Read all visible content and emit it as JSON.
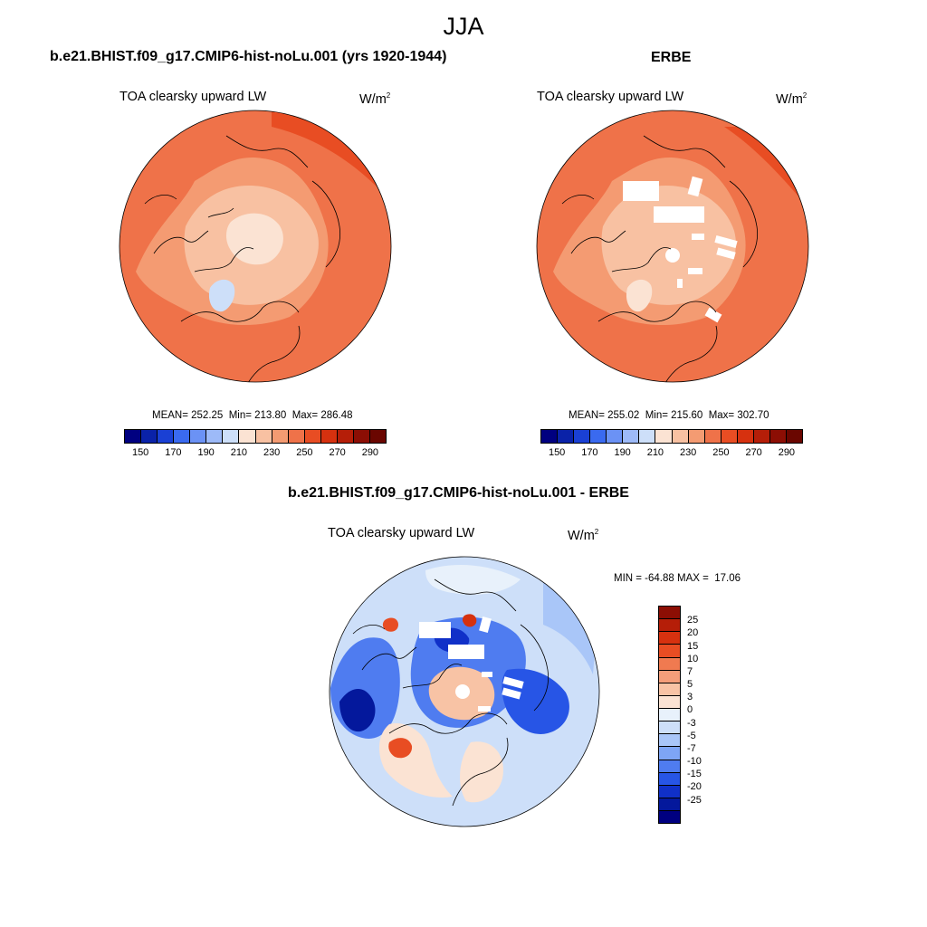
{
  "page_title": "JJA",
  "panels": [
    {
      "title": "b.e21.BHIST.f09_g17.CMIP6-hist-noLu.001 (yrs 1920-1944)",
      "variable": "TOA clearsky upward LW",
      "units": "W/m",
      "units_exp": "2",
      "stats": "MEAN= 252.25  Min= 213.80  Max= 286.48",
      "mean": 252.25,
      "min": 213.8,
      "max": 286.48
    },
    {
      "title": "ERBE",
      "variable": "TOA clearsky upward LW",
      "units": "W/m",
      "units_exp": "2",
      "stats": "MEAN= 255.02  Min= 215.60  Max= 302.70",
      "mean": 255.02,
      "min": 215.6,
      "max": 302.7
    },
    {
      "title": "b.e21.BHIST.f09_g17.CMIP6-hist-noLu.001 - ERBE",
      "variable": "TOA clearsky upward LW",
      "units": "W/m",
      "units_exp": "2",
      "stats": "MIN = -64.88 MAX =  17.06",
      "min": -64.88,
      "max": 17.06
    }
  ],
  "colorbar_abs": {
    "colors": [
      "#000080",
      "#0a22a8",
      "#1a40d4",
      "#3a6af0",
      "#6b92f5",
      "#9dbaf8",
      "#cddff9",
      "#fbe3d3",
      "#f8c1a2",
      "#f49b72",
      "#ef7249",
      "#e84d23",
      "#d6310f",
      "#b51e08",
      "#8c0e04",
      "#6a0600"
    ],
    "labels": [
      "150",
      "170",
      "190",
      "210",
      "230",
      "250",
      "270",
      "290"
    ],
    "label_slots": [
      1,
      3,
      5,
      7,
      9,
      11,
      13,
      15
    ]
  },
  "colorbar_diff": {
    "colors": [
      "#8c0e04",
      "#b51e08",
      "#d6310f",
      "#e84d23",
      "#f07a50",
      "#f49e7a",
      "#f8c3a5",
      "#fbe3d3",
      "#e8f1fb",
      "#cddff9",
      "#a9c6f8",
      "#7ea5f5",
      "#4f7cf0",
      "#2755e6",
      "#1030c8",
      "#04189c",
      "#000080"
    ],
    "labels": [
      "25",
      "20",
      "15",
      "10",
      "7",
      "5",
      "3",
      "0",
      "-3",
      "-5",
      "-7",
      "-10",
      "-15",
      "-20",
      "-25"
    ]
  },
  "map_colors": {
    "ocean_abs": "#ef7249",
    "land_abs": "#e84d23",
    "mid_abs": "#f49b72",
    "arctic_abs": "#f8c1a2",
    "pole_abs": "#fbe3d3",
    "greenland_abs": "#cddff9",
    "missing": "#ffffff",
    "coast": "#000000"
  }
}
